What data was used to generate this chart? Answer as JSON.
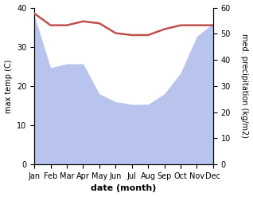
{
  "months": [
    "Jan",
    "Feb",
    "Mar",
    "Apr",
    "May",
    "Jun",
    "Jul",
    "Aug",
    "Sep",
    "Oct",
    "Nov",
    "Dec"
  ],
  "month_indices": [
    0,
    1,
    2,
    3,
    4,
    5,
    6,
    7,
    8,
    9,
    10,
    11
  ],
  "temperature": [
    38.5,
    35.5,
    35.5,
    36.5,
    36.0,
    33.5,
    33.0,
    33.0,
    34.5,
    35.5,
    35.5,
    35.5
  ],
  "precipitation": [
    57.0,
    37.0,
    38.5,
    38.5,
    27.0,
    24.0,
    23.0,
    23.0,
    27.0,
    35.0,
    49.0,
    54.0
  ],
  "temp_color": "#c0504d",
  "precip_color": "#b8c4ee",
  "temp_ylim": [
    0,
    40
  ],
  "precip_ylim": [
    0,
    60
  ],
  "xlabel": "date (month)",
  "ylabel_left": "max temp (C)",
  "ylabel_right": "med. precipitation (kg/m2)",
  "tick_fontsize": 7,
  "label_fontsize": 7,
  "xlabel_fontsize": 8
}
